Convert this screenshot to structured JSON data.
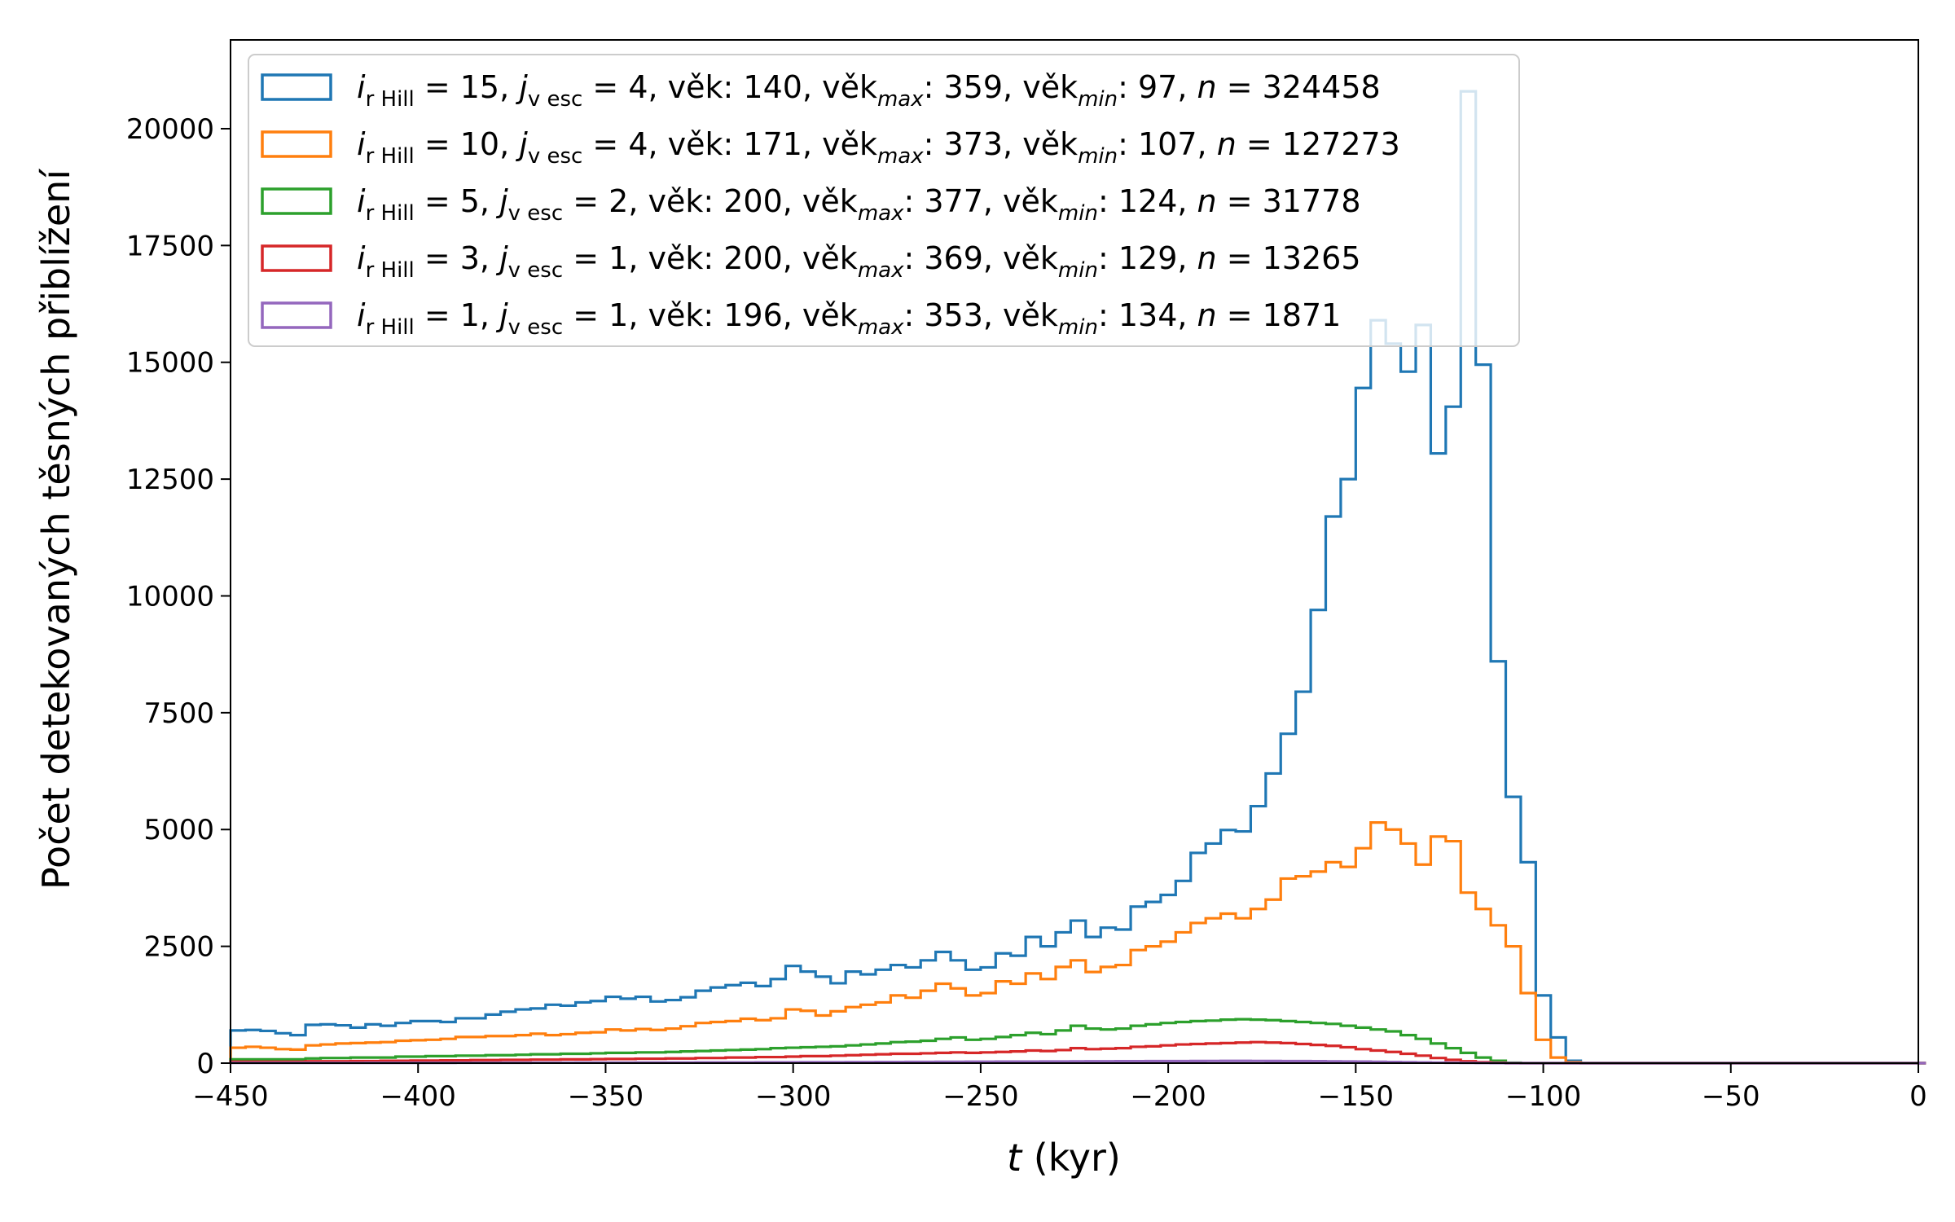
{
  "chart_data": {
    "type": "step-histogram",
    "xlabel_var": "t",
    "xlabel_unit": " (kyr)",
    "ylabel": "Počet detekovaných těsných přiblížení",
    "xlim": [
      -450,
      0
    ],
    "ylim": [
      0,
      21900
    ],
    "xticks": [
      -450,
      -400,
      -350,
      -300,
      -250,
      -200,
      -150,
      -100,
      -50,
      0
    ],
    "xtick_labels": [
      "−450",
      "−400",
      "−350",
      "−300",
      "−250",
      "−200",
      "−150",
      "−100",
      "−50",
      "0"
    ],
    "yticks": [
      0,
      2500,
      5000,
      7500,
      10000,
      12500,
      15000,
      17500,
      20000
    ],
    "ytick_labels": [
      "0",
      "2500",
      "5000",
      "7500",
      "10000",
      "12500",
      "15000",
      "17500",
      "20000"
    ],
    "bin_start": -450,
    "bin_width": 4,
    "bin_count": 113,
    "legend_position": "top-left",
    "grid": false,
    "series": [
      {
        "color": "#1f77b4",
        "legend": {
          "i": "15",
          "j": "4",
          "age": "140",
          "age_max": "359",
          "age_min": "97",
          "n": "324458"
        },
        "values": [
          700,
          710,
          690,
          640,
          600,
          820,
          830,
          810,
          760,
          830,
          800,
          860,
          900,
          900,
          880,
          960,
          960,
          1040,
          1100,
          1150,
          1170,
          1250,
          1230,
          1300,
          1330,
          1420,
          1380,
          1420,
          1320,
          1350,
          1410,
          1550,
          1620,
          1670,
          1720,
          1650,
          1800,
          2080,
          1960,
          1850,
          1710,
          1960,
          1900,
          2000,
          2100,
          2050,
          2200,
          2380,
          2200,
          2000,
          2050,
          2350,
          2300,
          2700,
          2500,
          2800,
          3050,
          2700,
          2900,
          2860,
          3350,
          3450,
          3600,
          3900,
          4500,
          4700,
          4990,
          4960,
          5500,
          6200,
          7050,
          7950,
          9700,
          11700,
          12500,
          14450,
          15900,
          15400,
          14800,
          15800,
          13050,
          14050,
          20800,
          14950,
          8600,
          5700,
          4300,
          1450,
          550,
          50,
          0,
          0,
          0,
          0,
          0,
          0,
          0,
          0,
          0,
          0,
          0,
          0,
          0,
          0,
          0,
          0,
          0,
          0,
          0,
          0,
          0,
          0,
          0
        ]
      },
      {
        "color": "#ff7f0e",
        "legend": {
          "i": "10",
          "j": "4",
          "age": "171",
          "age_max": "373",
          "age_min": "107",
          "n": "127273"
        },
        "values": [
          330,
          350,
          330,
          300,
          290,
          380,
          400,
          420,
          430,
          440,
          450,
          480,
          490,
          500,
          520,
          560,
          560,
          580,
          580,
          600,
          630,
          600,
          620,
          650,
          660,
          720,
          700,
          730,
          710,
          740,
          790,
          860,
          880,
          900,
          950,
          920,
          960,
          1150,
          1120,
          1020,
          1110,
          1200,
          1250,
          1300,
          1450,
          1400,
          1550,
          1700,
          1600,
          1450,
          1500,
          1750,
          1700,
          1920,
          1800,
          2060,
          2200,
          1950,
          2060,
          2100,
          2420,
          2500,
          2600,
          2800,
          3000,
          3100,
          3200,
          3100,
          3300,
          3500,
          3950,
          4000,
          4100,
          4300,
          4200,
          4600,
          5150,
          5000,
          4700,
          4250,
          4850,
          4750,
          3650,
          3300,
          2950,
          2500,
          1500,
          500,
          120,
          20,
          0,
          0,
          0,
          0,
          0,
          0,
          0,
          0,
          0,
          0,
          0,
          0,
          0,
          0,
          0,
          0,
          0,
          0,
          0,
          0,
          0,
          0,
          0
        ]
      },
      {
        "color": "#2ca02c",
        "legend": {
          "i": " 5",
          "j": "2",
          "age": "200",
          "age_max": "377",
          "age_min": "124",
          "n": "31778"
        },
        "values": [
          80,
          80,
          80,
          80,
          80,
          100,
          110,
          110,
          120,
          120,
          120,
          140,
          140,
          150,
          150,
          160,
          160,
          170,
          170,
          180,
          190,
          190,
          200,
          200,
          210,
          220,
          220,
          230,
          230,
          240,
          250,
          260,
          270,
          280,
          290,
          300,
          320,
          330,
          340,
          350,
          360,
          380,
          400,
          420,
          450,
          460,
          480,
          520,
          550,
          500,
          520,
          560,
          600,
          650,
          620,
          700,
          800,
          740,
          720,
          740,
          800,
          830,
          860,
          880,
          900,
          910,
          930,
          940,
          930,
          920,
          900,
          880,
          860,
          840,
          800,
          760,
          720,
          680,
          600,
          520,
          420,
          320,
          220,
          120,
          50,
          10,
          0,
          0,
          0,
          0,
          0,
          0,
          0,
          0,
          0,
          0,
          0,
          0,
          0,
          0,
          0,
          0,
          0,
          0,
          0,
          0,
          0,
          0,
          0,
          0,
          0,
          0,
          0
        ]
      },
      {
        "color": "#d62728",
        "legend": {
          "i": " 3",
          "j": "1",
          "age": "200",
          "age_max": "369",
          "age_min": "129",
          "n": "13265"
        },
        "values": [
          30,
          30,
          30,
          30,
          30,
          40,
          40,
          40,
          45,
          45,
          50,
          50,
          55,
          55,
          60,
          60,
          65,
          65,
          70,
          70,
          75,
          75,
          80,
          80,
          85,
          90,
          90,
          95,
          95,
          100,
          100,
          110,
          110,
          120,
          120,
          130,
          130,
          140,
          150,
          150,
          160,
          170,
          180,
          190,
          200,
          200,
          210,
          220,
          230,
          220,
          230,
          240,
          250,
          270,
          260,
          280,
          320,
          300,
          310,
          320,
          350,
          360,
          380,
          400,
          410,
          420,
          430,
          440,
          450,
          440,
          430,
          410,
          390,
          370,
          340,
          300,
          270,
          240,
          200,
          160,
          110,
          70,
          40,
          20,
          10,
          0,
          0,
          0,
          0,
          0,
          0,
          0,
          0,
          0,
          0,
          0,
          0,
          0,
          0,
          0,
          0,
          0,
          0,
          0,
          0,
          0,
          0,
          0,
          0,
          0,
          0,
          0,
          0
        ]
      },
      {
        "color": "#9467bd",
        "legend": {
          "i": " 1",
          "j": "1",
          "age": "196",
          "age_max": "353",
          "age_min": "134",
          "n": "1871"
        },
        "values": [
          5,
          5,
          5,
          5,
          5,
          5,
          5,
          5,
          5,
          6,
          6,
          6,
          7,
          7,
          7,
          8,
          8,
          8,
          9,
          9,
          10,
          10,
          10,
          11,
          11,
          12,
          12,
          13,
          13,
          14,
          14,
          15,
          15,
          16,
          16,
          17,
          18,
          18,
          19,
          20,
          21,
          22,
          23,
          24,
          25,
          26,
          27,
          28,
          29,
          30,
          31,
          32,
          33,
          34,
          35,
          36,
          38,
          39,
          40,
          41,
          42,
          43,
          44,
          45,
          46,
          47,
          48,
          48,
          47,
          46,
          45,
          43,
          41,
          38,
          35,
          32,
          28,
          24,
          20,
          16,
          12,
          8,
          5,
          3,
          1,
          0,
          0,
          0,
          0,
          0,
          0,
          0,
          0,
          0,
          0,
          0,
          0,
          0,
          0,
          0,
          0,
          0,
          0,
          0,
          0,
          0,
          0,
          0,
          0,
          0,
          0,
          0,
          0
        ]
      }
    ]
  }
}
